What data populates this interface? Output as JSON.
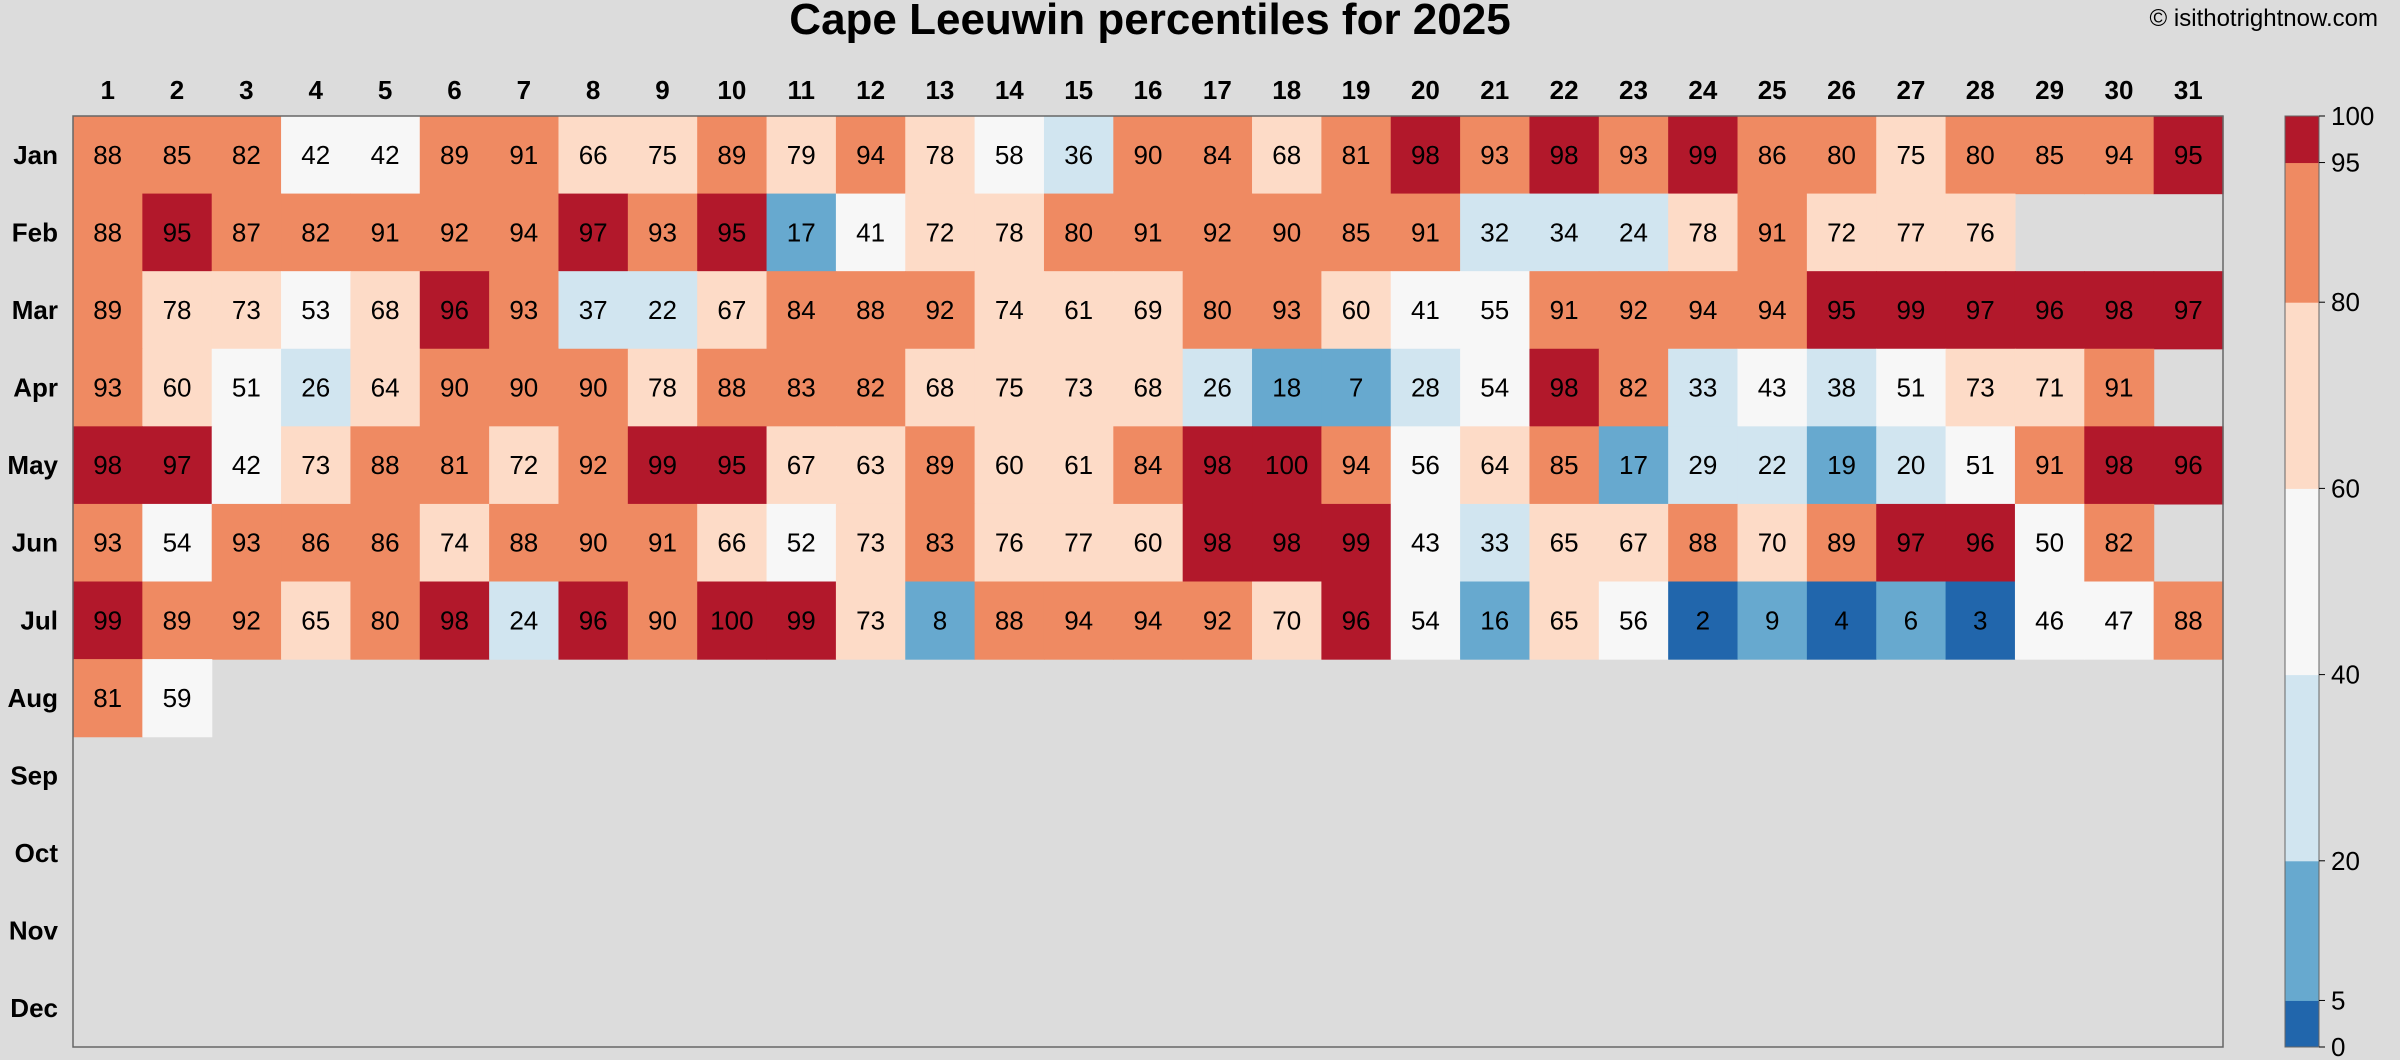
{
  "chart_data": {
    "type": "heatmap",
    "title": "Cape Leeuwin percentiles for 2025",
    "credit": "© isithotrightnow.com",
    "x_categories": [
      "1",
      "2",
      "3",
      "4",
      "5",
      "6",
      "7",
      "8",
      "9",
      "10",
      "11",
      "12",
      "13",
      "14",
      "15",
      "16",
      "17",
      "18",
      "19",
      "20",
      "21",
      "22",
      "23",
      "24",
      "25",
      "26",
      "27",
      "28",
      "29",
      "30",
      "31"
    ],
    "y_categories": [
      "Jan",
      "Feb",
      "Mar",
      "Apr",
      "May",
      "Jun",
      "Jul",
      "Aug",
      "Sep",
      "Oct",
      "Nov",
      "Dec"
    ],
    "values": [
      [
        88,
        85,
        82,
        42,
        42,
        89,
        91,
        66,
        75,
        89,
        79,
        94,
        78,
        58,
        36,
        90,
        84,
        68,
        81,
        98,
        93,
        98,
        93,
        99,
        86,
        80,
        75,
        80,
        85,
        94,
        95
      ],
      [
        88,
        95,
        87,
        82,
        91,
        92,
        94,
        97,
        93,
        95,
        17,
        41,
        72,
        78,
        80,
        91,
        92,
        90,
        85,
        91,
        32,
        34,
        24,
        78,
        91,
        72,
        77,
        76,
        null,
        null,
        null
      ],
      [
        89,
        78,
        73,
        53,
        68,
        96,
        93,
        37,
        22,
        67,
        84,
        88,
        92,
        74,
        61,
        69,
        80,
        93,
        60,
        41,
        55,
        91,
        92,
        94,
        94,
        95,
        99,
        97,
        96,
        98,
        97
      ],
      [
        93,
        60,
        51,
        26,
        64,
        90,
        90,
        90,
        78,
        88,
        83,
        82,
        68,
        75,
        73,
        68,
        26,
        18,
        7,
        28,
        54,
        98,
        82,
        33,
        43,
        38,
        51,
        73,
        71,
        91,
        null
      ],
      [
        98,
        97,
        42,
        73,
        88,
        81,
        72,
        92,
        99,
        95,
        67,
        63,
        89,
        60,
        61,
        84,
        98,
        100,
        94,
        56,
        64,
        85,
        17,
        29,
        22,
        19,
        20,
        51,
        91,
        98,
        96
      ],
      [
        93,
        54,
        93,
        86,
        86,
        74,
        88,
        90,
        91,
        66,
        52,
        73,
        83,
        76,
        77,
        60,
        98,
        98,
        99,
        43,
        33,
        65,
        67,
        88,
        70,
        89,
        97,
        96,
        50,
        82,
        null
      ],
      [
        99,
        89,
        92,
        65,
        80,
        98,
        24,
        96,
        90,
        100,
        99,
        73,
        8,
        88,
        94,
        94,
        92,
        70,
        96,
        54,
        16,
        65,
        56,
        2,
        9,
        4,
        6,
        3,
        46,
        47,
        88
      ],
      [
        81,
        59,
        null,
        null,
        null,
        null,
        null,
        null,
        null,
        null,
        null,
        null,
        null,
        null,
        null,
        null,
        null,
        null,
        null,
        null,
        null,
        null,
        null,
        null,
        null,
        null,
        null,
        null,
        null,
        null,
        null
      ],
      [
        null,
        null,
        null,
        null,
        null,
        null,
        null,
        null,
        null,
        null,
        null,
        null,
        null,
        null,
        null,
        null,
        null,
        null,
        null,
        null,
        null,
        null,
        null,
        null,
        null,
        null,
        null,
        null,
        null,
        null,
        null
      ],
      [
        null,
        null,
        null,
        null,
        null,
        null,
        null,
        null,
        null,
        null,
        null,
        null,
        null,
        null,
        null,
        null,
        null,
        null,
        null,
        null,
        null,
        null,
        null,
        null,
        null,
        null,
        null,
        null,
        null,
        null,
        null
      ],
      [
        null,
        null,
        null,
        null,
        null,
        null,
        null,
        null,
        null,
        null,
        null,
        null,
        null,
        null,
        null,
        null,
        null,
        null,
        null,
        null,
        null,
        null,
        null,
        null,
        null,
        null,
        null,
        null,
        null,
        null,
        null
      ],
      [
        null,
        null,
        null,
        null,
        null,
        null,
        null,
        null,
        null,
        null,
        null,
        null,
        null,
        null,
        null,
        null,
        null,
        null,
        null,
        null,
        null,
        null,
        null,
        null,
        null,
        null,
        null,
        null,
        null,
        null,
        null
      ]
    ],
    "color_scale": {
      "breaks": [
        0,
        5,
        20,
        40,
        60,
        80,
        95,
        100
      ],
      "colors": [
        "#2166ac",
        "#67a9cf",
        "#d1e5f0",
        "#f7f7f7",
        "#fddbc7",
        "#ef8a62",
        "#b2182b"
      ],
      "tick_labels": [
        "0",
        "5",
        "20",
        "40",
        "60",
        "80",
        "95",
        "100"
      ]
    },
    "legend_position": "right",
    "grid": false
  }
}
